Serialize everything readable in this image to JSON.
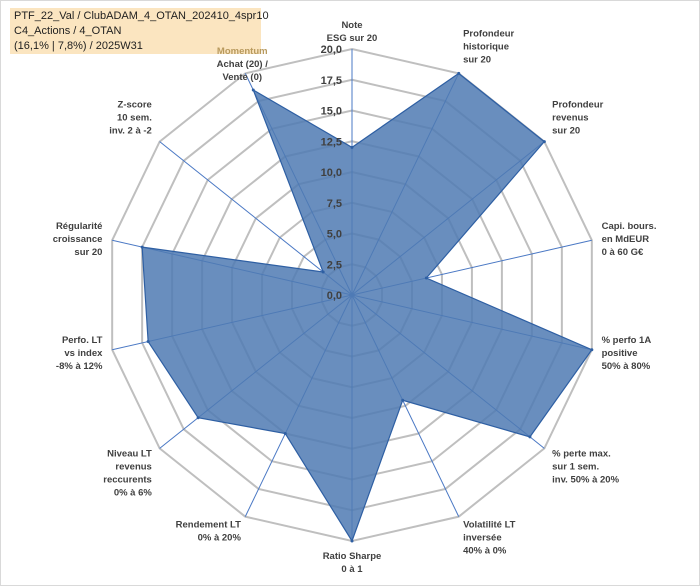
{
  "chart_title": {
    "line1": "PTF_22_Val / ClubADAM_4_OTAN_202410_4spr10",
    "line2": "C4_Actions / 4_OTAN",
    "line3": "(16,1% | 7,8%) / 2025W31"
  },
  "chart_data": {
    "type": "radar",
    "rlim": [
      0,
      20
    ],
    "ticks": [
      "0,0",
      "2,5",
      "5,0",
      "7,5",
      "10,0",
      "12,5",
      "15,0",
      "17,5",
      "20,0"
    ],
    "categories": [
      {
        "lines": [
          "Note",
          "ESG sur 20"
        ],
        "value": 12
      },
      {
        "lines": [
          "Profondeur",
          "historique",
          "sur 20"
        ],
        "value": 20
      },
      {
        "lines": [
          "Profondeur",
          "revenus",
          "sur 20"
        ],
        "value": 20
      },
      {
        "lines": [
          "Capi. bours.",
          "en MdEUR",
          "0 à 60 G€"
        ],
        "value": 6.2
      },
      {
        "lines": [
          "% perfo 1A",
          "positive",
          "50% à 80%"
        ],
        "value": 20
      },
      {
        "lines": [
          "% perte max.",
          "sur 1 sem.",
          "inv. 50% à 20%"
        ],
        "value": 18.5
      },
      {
        "lines": [
          "Volatilité LT",
          "inversée",
          "40% à 0%"
        ],
        "value": 9.5
      },
      {
        "lines": [
          "Ratio Sharpe",
          "0 à 1"
        ],
        "value": 20
      },
      {
        "lines": [
          "Rendement LT",
          "0% à 20%"
        ],
        "value": 12.5
      },
      {
        "lines": [
          "Niveau LT",
          "revenus",
          "reccurents",
          "0% à 6%"
        ],
        "value": 16
      },
      {
        "lines": [
          "Perfo. LT",
          "vs index",
          "-8% à 12%"
        ],
        "value": 17
      },
      {
        "lines": [
          "Régularité",
          "croissance",
          "sur 20"
        ],
        "value": 17.5
      },
      {
        "lines": [
          "Z-score",
          "10 sem.",
          "inv. 2 à -2"
        ],
        "value": 3
      },
      {
        "lines": [
          "Momentum",
          "Achat (20) /",
          "Vente (0)"
        ],
        "value": 18.5
      }
    ],
    "colors": {
      "fill": "#4f7ab3",
      "stroke": "#2e5fa3",
      "grid": "#bfbfbf",
      "spoke": "#4a78c4",
      "label": "#404040",
      "momentum_label": "#b89a5e"
    }
  }
}
